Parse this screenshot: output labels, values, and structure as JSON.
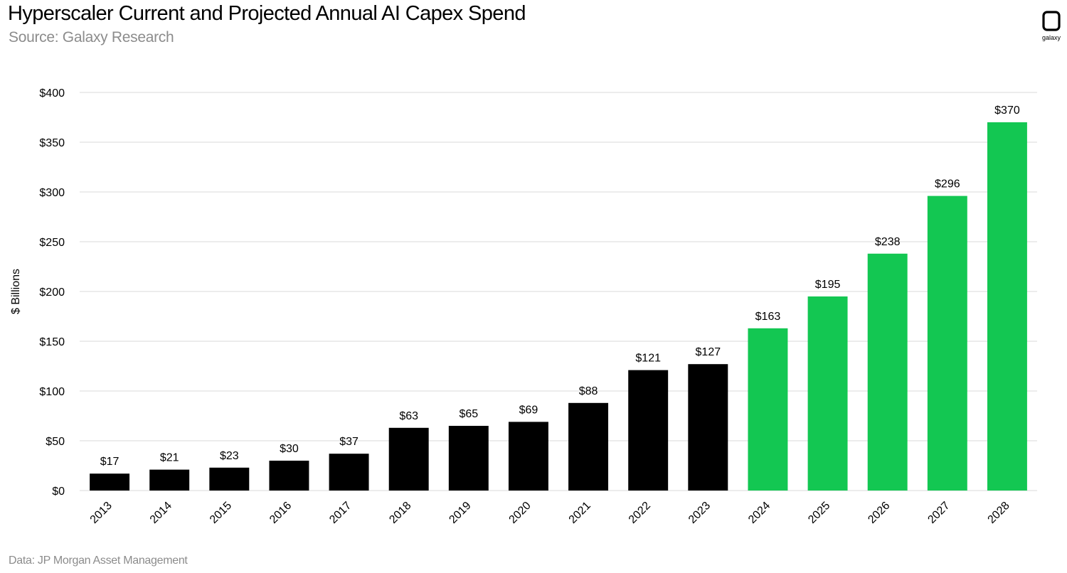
{
  "header": {
    "title": "Hyperscaler Current and Projected Annual AI Capex Spend",
    "subtitle": "Source: Galaxy Research"
  },
  "footer": {
    "note": "Data: JP Morgan Asset Management"
  },
  "logo": {
    "icon": "galaxy-logo-icon",
    "label": "galaxy"
  },
  "colors": {
    "actual": "#000000",
    "projected": "#13c752",
    "grid": "#d9d9d9",
    "text": "#000000",
    "muted": "#8c8c8c"
  },
  "chart_data": {
    "type": "bar",
    "title": "Hyperscaler Current and Projected Annual AI Capex Spend",
    "xlabel": "",
    "ylabel": "$ Billions",
    "ylim": [
      0,
      400
    ],
    "yticks": [
      0,
      50,
      100,
      150,
      200,
      250,
      300,
      350,
      400
    ],
    "ytick_labels": [
      "$0",
      "$50",
      "$100",
      "$150",
      "$200",
      "$250",
      "$300",
      "$350",
      "$400"
    ],
    "grid": true,
    "categories": [
      "2013",
      "2014",
      "2015",
      "2016",
      "2017",
      "2018",
      "2019",
      "2020",
      "2021",
      "2022",
      "2023",
      "2024",
      "2025",
      "2026",
      "2027",
      "2028"
    ],
    "values": [
      17,
      21,
      23,
      30,
      37,
      63,
      65,
      69,
      88,
      121,
      127,
      163,
      195,
      238,
      296,
      370
    ],
    "data_labels": [
      "$17",
      "$21",
      "$23",
      "$30",
      "$37",
      "$63",
      "$65",
      "$69",
      "$88",
      "$121",
      "$127",
      "$163",
      "$195",
      "$238",
      "$296",
      "$370"
    ],
    "status": [
      "actual",
      "actual",
      "actual",
      "actual",
      "actual",
      "actual",
      "actual",
      "actual",
      "actual",
      "actual",
      "actual",
      "projected",
      "projected",
      "projected",
      "projected",
      "projected"
    ]
  }
}
